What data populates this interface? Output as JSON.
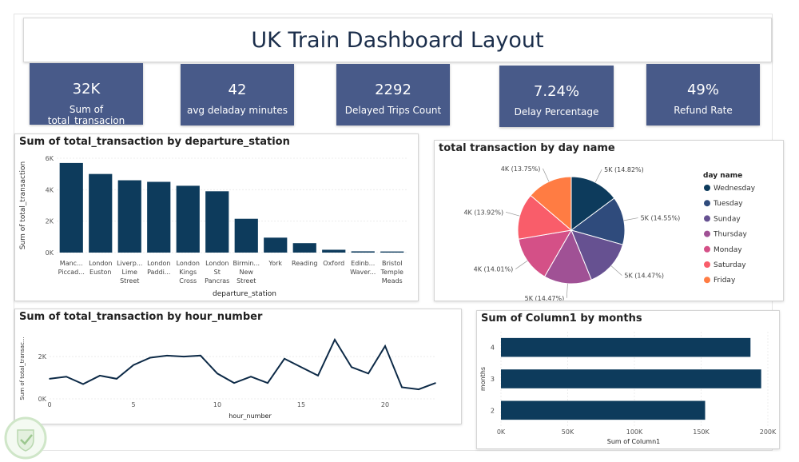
{
  "title": "UK Train Dashboard Layout",
  "kpis": [
    {
      "value": "32K",
      "label": "Sum of total_transacion"
    },
    {
      "value": "42",
      "label": "avg deladay minutes"
    },
    {
      "value": "2292",
      "label": "Delayed Trips Count"
    },
    {
      "value": "7.24%",
      "label": "Delay Percentage"
    },
    {
      "value": "49%",
      "label": "Refund Rate"
    }
  ],
  "colors": {
    "kpi_bg": "#485a89",
    "bar": "#0d3b5c",
    "line": "#0d2a47"
  },
  "chart_data": [
    {
      "type": "bar",
      "title": "Sum of total_transaction by departure_station",
      "xlabel": "departure_station",
      "ylabel": "Sum of total_transaction",
      "categories": [
        [
          "Manc...",
          "Piccad..."
        ],
        [
          "London",
          "Euston"
        ],
        [
          "Liverp...",
          "Lime",
          "Street"
        ],
        [
          "London",
          "Paddi..."
        ],
        [
          "London",
          "Kings",
          "Cross"
        ],
        [
          "London",
          "St",
          "Pancras"
        ],
        [
          "Birmin...",
          "New",
          "Street"
        ],
        [
          "York"
        ],
        [
          "Reading"
        ],
        [
          "Oxford"
        ],
        [
          "Edinb...",
          "Waver..."
        ],
        [
          "Bristol",
          "Temple",
          "Meads"
        ]
      ],
      "values": [
        5700,
        5000,
        4600,
        4500,
        4250,
        3900,
        2150,
        950,
        600,
        180,
        80,
        70
      ],
      "ylim": [
        0,
        6000
      ],
      "yticks": [
        "0K",
        "2K",
        "4K",
        "6K"
      ]
    },
    {
      "type": "pie",
      "title": "total transaction by day name",
      "legend_title": "day name",
      "slices": [
        {
          "label": "Wednesday",
          "value": 14.82,
          "display": "5K (14.82%)",
          "color": "#0d3b5c"
        },
        {
          "label": "Tuesday",
          "value": 14.55,
          "display": "5K (14.55%)",
          "color": "#2f4b7c"
        },
        {
          "label": "Sunday",
          "value": 14.47,
          "display": "5K (14.47%)",
          "color": "#665191"
        },
        {
          "label": "Thursday",
          "value": 14.47,
          "display": "5K (14.47%)",
          "color": "#a05195"
        },
        {
          "label": "Monday",
          "value": 14.01,
          "display": "4K (14.01%)",
          "color": "#d45087"
        },
        {
          "label": "Saturday",
          "value": 13.92,
          "display": "4K (13.92%)",
          "color": "#f95d6a"
        },
        {
          "label": "Friday",
          "value": 13.75,
          "display": "4K (13.75%)",
          "color": "#ff7c43"
        }
      ]
    },
    {
      "type": "line",
      "title": "Sum of total_transaction by hour_number",
      "xlabel": "hour_number",
      "ylabel": "Sum of total_transac...",
      "x": [
        0,
        1,
        2,
        3,
        4,
        5,
        6,
        7,
        8,
        9,
        10,
        11,
        12,
        13,
        14,
        15,
        16,
        17,
        18,
        19,
        20,
        21,
        22,
        23
      ],
      "values": [
        950,
        1050,
        700,
        1100,
        950,
        1600,
        1950,
        2050,
        2000,
        2050,
        1200,
        750,
        1050,
        750,
        1900,
        1500,
        1100,
        2800,
        1500,
        1200,
        2500,
        550,
        450,
        750
      ],
      "ylim": [
        0,
        2800
      ],
      "yticks": [
        "0K",
        "2K"
      ],
      "xticks": [
        0,
        5,
        10,
        15,
        20
      ]
    },
    {
      "type": "bar",
      "orientation": "horizontal",
      "title": "Sum of Column1 by months",
      "xlabel": "Sum of Column1",
      "ylabel": "months",
      "categories": [
        "4",
        "3",
        "2"
      ],
      "values": [
        187000,
        195000,
        153000
      ],
      "xlim": [
        0,
        200000
      ],
      "xticks": [
        "0K",
        "50K",
        "100K",
        "150K",
        "200K"
      ]
    }
  ]
}
